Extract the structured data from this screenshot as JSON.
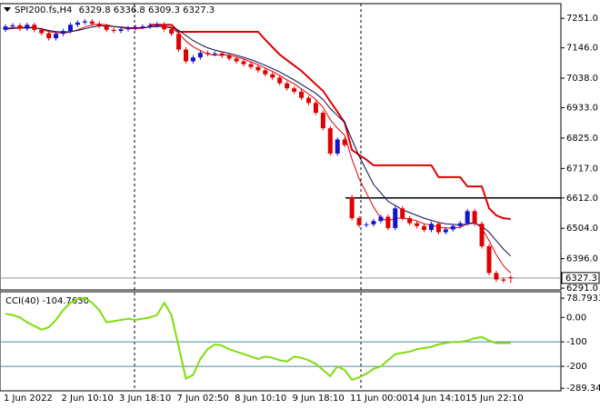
{
  "chart_data": [
    {
      "type": "candlestick",
      "title": "SPI200.fs,H4",
      "categories": [
        "1 Jun 2022",
        null,
        null,
        null,
        null,
        null,
        null,
        null,
        "2 Jun 10:10",
        null,
        null,
        null,
        null,
        null,
        null,
        null,
        "3 Jun 18:10",
        null,
        null,
        null,
        null,
        null,
        null,
        null,
        "7 Jun 02:50",
        null,
        null,
        null,
        null,
        null,
        null,
        null,
        "8 Jun 10:10",
        null,
        null,
        null,
        null,
        null,
        null,
        null,
        "9 Jun 18:10",
        null,
        null,
        null,
        null,
        null,
        null,
        null,
        "11 Jun 00:00",
        null,
        null,
        null,
        null,
        null,
        null,
        null,
        "14 Jun 14:10",
        null,
        null,
        null,
        null,
        null,
        null,
        null,
        "15 Jun 22:10",
        null,
        null,
        null,
        null,
        null,
        null
      ],
      "open": [
        7210,
        7222,
        7226,
        7214,
        7228,
        7210,
        7198,
        7180,
        7196,
        7206,
        7228,
        7236,
        7240,
        7232,
        7224,
        7210,
        7206,
        7212,
        7216,
        7220,
        7222,
        7226,
        7230,
        7212,
        7196,
        7140,
        7098,
        7112,
        7128,
        7124,
        7126,
        7118,
        7108,
        7098,
        7088,
        7078,
        7066,
        7052,
        7040,
        7020,
        7002,
        6990,
        6968,
        6950,
        6915,
        6860,
        6770,
        6820,
        6615,
        6540,
        6515,
        6518,
        6530,
        6545,
        6505,
        6575,
        6540,
        6522,
        6512,
        6498,
        6520,
        6490,
        6500,
        6512,
        6522,
        6565,
        6520,
        6440,
        6345,
        6322,
        6329.8
      ],
      "high": [
        7230,
        7234,
        7234,
        7236,
        7236,
        7218,
        7206,
        7204,
        7214,
        7236,
        7244,
        7248,
        7248,
        7240,
        7232,
        7218,
        7220,
        7224,
        7228,
        7230,
        7234,
        7238,
        7238,
        7220,
        7204,
        7148,
        7120,
        7136,
        7136,
        7134,
        7134,
        7126,
        7116,
        7106,
        7096,
        7086,
        7074,
        7060,
        7048,
        7028,
        7010,
        6998,
        6976,
        6958,
        6923,
        6868,
        6828,
        6828,
        6623,
        6548,
        6526,
        6538,
        6553,
        6553,
        6583,
        6583,
        6548,
        6530,
        6520,
        6528,
        6528,
        6508,
        6520,
        6530,
        6573,
        6573,
        6528,
        6448,
        6353,
        6330,
        6336.8
      ],
      "low": [
        7202,
        7214,
        7206,
        7206,
        7202,
        7190,
        7172,
        7172,
        7188,
        7198,
        7220,
        7228,
        7224,
        7216,
        7202,
        7198,
        7198,
        7204,
        7208,
        7212,
        7214,
        7218,
        7204,
        7188,
        7132,
        7090,
        7090,
        7104,
        7116,
        7116,
        7110,
        7100,
        7090,
        7080,
        7070,
        7058,
        7044,
        7032,
        7012,
        6994,
        6982,
        6960,
        6942,
        6907,
        6852,
        6762,
        6762,
        6792,
        6532,
        6507,
        6507,
        6510,
        6522,
        6497,
        6497,
        6532,
        6514,
        6504,
        6490,
        6490,
        6482,
        6482,
        6492,
        6504,
        6514,
        6512,
        6432,
        6337,
        6314,
        6310,
        6309.3
      ],
      "close": [
        7222,
        7226,
        7214,
        7228,
        7210,
        7198,
        7180,
        7196,
        7206,
        7228,
        7236,
        7240,
        7232,
        7224,
        7210,
        7206,
        7212,
        7216,
        7220,
        7222,
        7226,
        7230,
        7212,
        7196,
        7140,
        7098,
        7112,
        7128,
        7124,
        7126,
        7118,
        7108,
        7098,
        7088,
        7078,
        7066,
        7052,
        7040,
        7020,
        7002,
        6990,
        6968,
        6950,
        6915,
        6860,
        6770,
        6820,
        6800,
        6540,
        6515,
        6518,
        6530,
        6545,
        6505,
        6575,
        6540,
        6522,
        6512,
        6498,
        6520,
        6490,
        6500,
        6512,
        6522,
        6565,
        6520,
        6440,
        6345,
        6322,
        6318,
        6327.3
      ],
      "up_color": "#1414c8",
      "down_color": "#e00000",
      "moving_averages": [
        {
          "color": "#e00000",
          "values": [
            7215,
            7218,
            7218,
            7220,
            7218,
            7212,
            7204,
            7200,
            7198,
            7202,
            7210,
            7220,
            7228,
            7230,
            7228,
            7222,
            7218,
            7214,
            7214,
            7216,
            7220,
            7224,
            7222,
            7216,
            7198,
            7170,
            7150,
            7136,
            7124,
            7120,
            7122,
            7120,
            7114,
            7106,
            7096,
            7086,
            7074,
            7062,
            7048,
            7032,
            7018,
            7000,
            6982,
            6962,
            6935,
            6890,
            6860,
            6835,
            6750,
            6680,
            6630,
            6580,
            6540,
            6530,
            6540,
            6540,
            6537,
            6530,
            6520,
            6515,
            6508,
            6505,
            6505,
            6508,
            6520,
            6525,
            6505,
            6460,
            6410,
            6370,
            6345
          ]
        },
        {
          "color": "#0a0a50",
          "values": [
            7212,
            7215,
            7216,
            7218,
            7217,
            7214,
            7208,
            7204,
            7202,
            7204,
            7208,
            7214,
            7220,
            7224,
            7224,
            7222,
            7220,
            7218,
            7217,
            7218,
            7220,
            7222,
            7222,
            7219,
            7208,
            7190,
            7172,
            7158,
            7146,
            7138,
            7132,
            7126,
            7120,
            7112,
            7104,
            7094,
            7084,
            7072,
            7060,
            7046,
            7032,
            7016,
            7000,
            6984,
            6962,
            6930,
            6905,
            6880,
            6820,
            6760,
            6710,
            6660,
            6630,
            6600,
            6585,
            6570,
            6560,
            6550,
            6540,
            6532,
            6525,
            6520,
            6518,
            6516,
            6520,
            6522,
            6512,
            6490,
            6460,
            6430,
            6405
          ]
        }
      ],
      "stop_line": {
        "color": "#e00000",
        "values": [
          null,
          null,
          null,
          null,
          null,
          null,
          null,
          null,
          null,
          null,
          null,
          null,
          null,
          null,
          null,
          null,
          null,
          null,
          null,
          null,
          7228,
          7228,
          7228,
          7228,
          7203,
          7203,
          7203,
          7203,
          7203,
          7203,
          7203,
          7203,
          7203,
          7203,
          7203,
          7203,
          7175,
          7148,
          7122,
          7102,
          7083,
          7064,
          7040,
          7016,
          6993,
          6955,
          6918,
          6880,
          6783,
          6765,
          6748,
          6728,
          6728,
          6728,
          6728,
          6728,
          6728,
          6728,
          6728,
          6728,
          6686,
          6686,
          6686,
          6686,
          6653,
          6653,
          6653,
          6575,
          6550,
          6540,
          6537
        ]
      },
      "hline": 6612,
      "ylim": [
        6288,
        7300
      ],
      "yticks": [
        {
          "value": 7251,
          "label": "7251.0"
        },
        {
          "value": 7146,
          "label": "7146.0"
        },
        {
          "value": 7038,
          "label": "7038.0"
        },
        {
          "value": 6933,
          "label": "6933.0"
        },
        {
          "value": 6825,
          "label": "6825.0"
        },
        {
          "value": 6717,
          "label": "6717.0"
        },
        {
          "value": 6612,
          "label": "6612.0"
        },
        {
          "value": 6504,
          "label": "6504.0"
        },
        {
          "value": 6396,
          "label": "6396.0"
        },
        {
          "value": 6291,
          "label": "6291.0"
        }
      ]
    },
    {
      "type": "line",
      "title": "CCI(40) -104.7630",
      "color": "#80dc10",
      "values": [
        15,
        10,
        0,
        -20,
        -35,
        -50,
        -40,
        -10,
        30,
        60,
        75,
        80,
        60,
        30,
        -20,
        -15,
        -10,
        -5,
        -10,
        -5,
        0,
        10,
        60,
        10,
        -120,
        -250,
        -235,
        -170,
        -130,
        -110,
        -115,
        -130,
        -140,
        -150,
        -160,
        -170,
        -160,
        -165,
        -175,
        -180,
        -160,
        -165,
        -175,
        -190,
        -215,
        -240,
        -200,
        -215,
        -255,
        -245,
        -230,
        -210,
        -200,
        -175,
        -150,
        -145,
        -140,
        -130,
        -125,
        -120,
        -110,
        -105,
        -100,
        -100,
        -95,
        -85,
        -80,
        -95,
        -105,
        -105,
        -104.763
      ],
      "levels": [
        -100,
        -200
      ],
      "level_color": "#4a8a99",
      "ylim": [
        -300,
        105
      ],
      "yticks": [
        78.7933,
        {
          "value": 0,
          "label": "0.00"
        },
        -100,
        -200,
        {
          "value": -289.3403,
          "label": "-289.340"
        }
      ]
    }
  ]
}
